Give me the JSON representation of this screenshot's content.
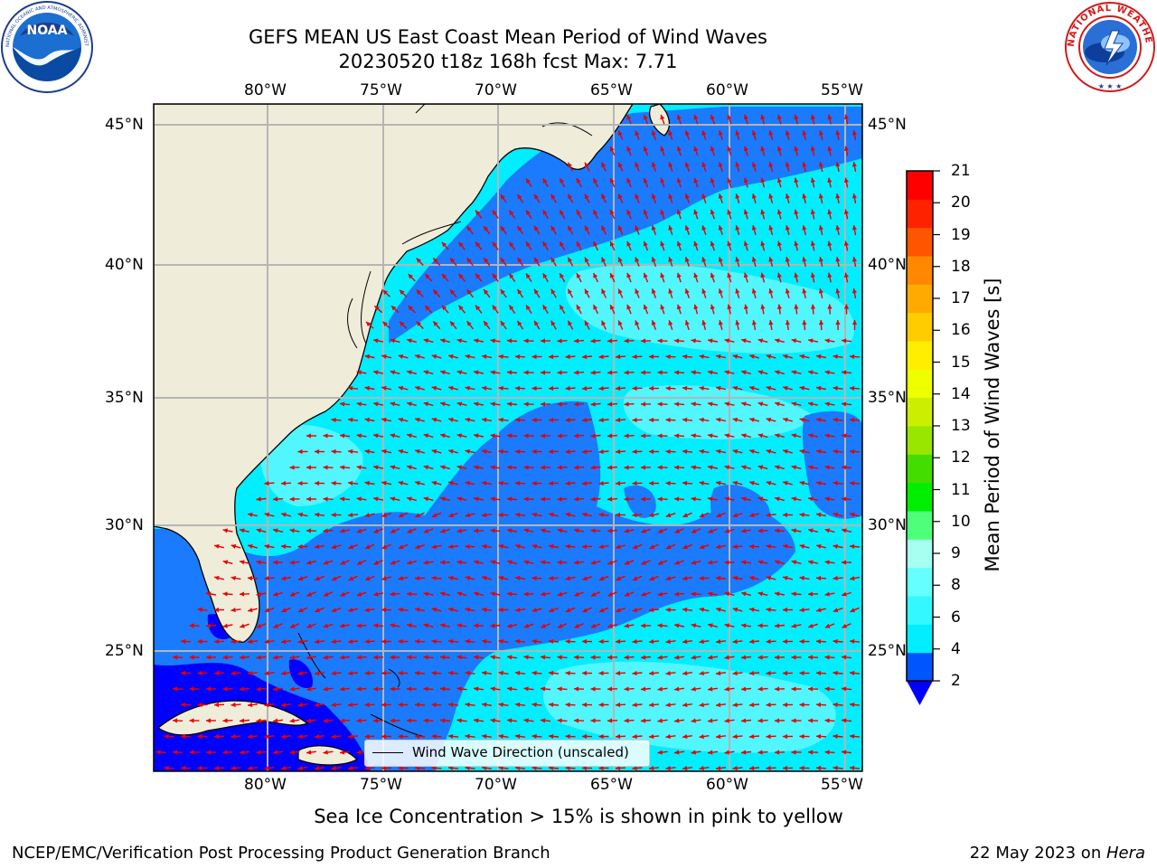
{
  "header": {
    "title_line1": "GEFS MEAN US East Coast Mean Period of Wind Waves",
    "title_line2": "20230520 t18z 168h fcst   Max: 7.71"
  },
  "logos": {
    "left": {
      "name": "noaa-logo",
      "text": "NOAA",
      "ring_text": "NATIONAL OCEANIC AND ATMOSPHERIC ADMINISTRATION · U.S. DEPARTMENT OF COMMERCE"
    },
    "right": {
      "name": "nws-logo",
      "ring_text": "NATIONAL WEATHER SERVICE"
    }
  },
  "map": {
    "lon_labels": [
      "80°W",
      "75°W",
      "70°W",
      "65°W",
      "60°W",
      "55°W"
    ],
    "lat_labels": [
      "45°N",
      "40°N",
      "35°N",
      "30°N",
      "25°N"
    ],
    "legend_label": "Wind Wave Direction (unscaled)",
    "arrow_color": "#e60000",
    "land_color": "#efedda"
  },
  "colorbar": {
    "title": "Mean Period of Wind Waves [s]",
    "tick_labels": [
      "2",
      "4",
      "6",
      "8",
      "9",
      "10",
      "11",
      "12",
      "13",
      "14",
      "15",
      "16",
      "17",
      "18",
      "19",
      "20",
      "21"
    ],
    "colors": [
      "#0055ff",
      "#00eeff",
      "#33f8ff",
      "#66ffff",
      "#a6fff0",
      "#4dff7a",
      "#00ee00",
      "#44dd00",
      "#99e600",
      "#ccee00",
      "#eeff00",
      "#ffee00",
      "#ffcc00",
      "#ffaa00",
      "#ff8800",
      "#ff5500",
      "#ff2200",
      "#ff0000"
    ],
    "under_color": "#0000ff"
  },
  "footer": {
    "note": "Sea Ice Concentration > 15% is shown in pink to yellow",
    "left": "NCEP/EMC/Verification Post Processing Product Generation Branch",
    "date": "22 May 2023 on ",
    "machine": "Hera"
  }
}
